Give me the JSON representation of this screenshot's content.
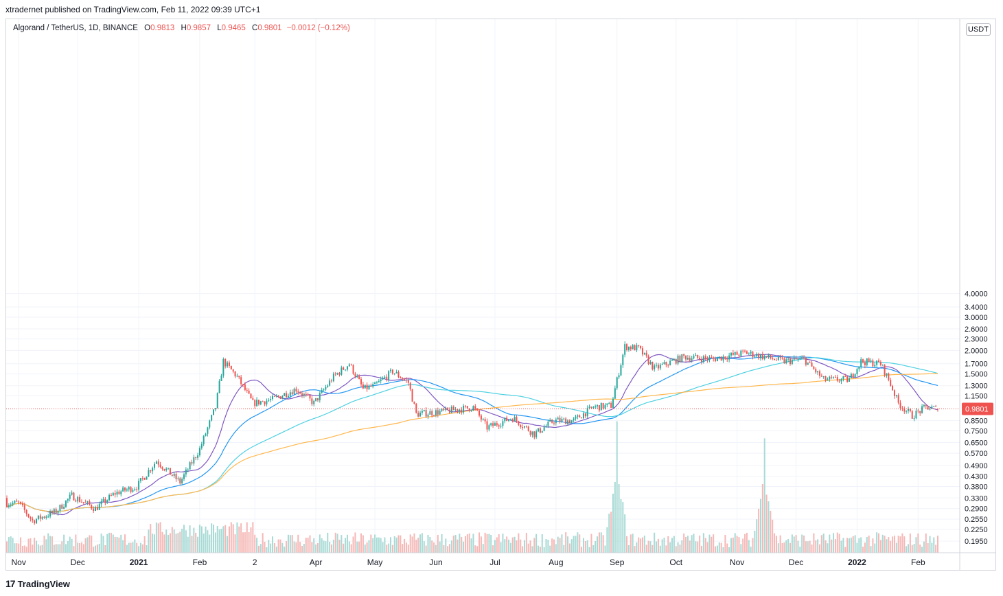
{
  "header": {
    "published_by": "xtradernet published on TradingView.com, Feb 11, 2022 09:39 UTC+1"
  },
  "legend": {
    "symbol": "Algorand / TetherUS, 1D, BINANCE",
    "o_label": "O",
    "o_value": "0.9813",
    "h_label": "H",
    "h_value": "0.9857",
    "l_label": "L",
    "l_value": "0.9465",
    "c_label": "C",
    "c_value": "0.9801",
    "change": "−0.0012 (−0.12%)"
  },
  "currency_button": "USDT",
  "footer": {
    "brand": "TradingView",
    "logo_glyph": "17"
  },
  "colors": {
    "up": "#26a69a",
    "down": "#ef5350",
    "ma_purple": "#7e57c2",
    "ma_blue": "#2196f3",
    "ma_cyan": "#4dd0e1",
    "ma_orange": "#ffb74d",
    "last_price_label": "#ef5350"
  },
  "chart_data": {
    "type": "candlestick",
    "title": "Algorand / TetherUS, 1D, BINANCE",
    "y_scale": "log",
    "y_axis_ticks": [
      "0.1950",
      "0.2250",
      "0.2550",
      "0.2900",
      "0.3300",
      "0.3800",
      "0.4300",
      "0.4900",
      "0.5700",
      "0.6500",
      "0.7500",
      "0.8500",
      "1.1500",
      "1.3000",
      "1.5000",
      "1.7000",
      "2.0000",
      "2.3000",
      "2.6000",
      "3.0000",
      "3.4000",
      "4.0000"
    ],
    "x_axis_ticks": [
      "Nov",
      "Dec",
      "2021",
      "Feb",
      "2",
      "Apr",
      "May",
      "Jun",
      "Jul",
      "Aug",
      "Sep",
      "Oct",
      "Nov",
      "Dec",
      "2022",
      "Feb"
    ],
    "last_price": "0.9801",
    "price_keypoints": [
      {
        "date": "2020-11-01",
        "close": 0.31
      },
      {
        "date": "2020-11-08",
        "close": 0.25
      },
      {
        "date": "2020-11-20",
        "close": 0.28
      },
      {
        "date": "2020-11-28",
        "close": 0.34
      },
      {
        "date": "2020-12-10",
        "close": 0.29
      },
      {
        "date": "2020-12-20",
        "close": 0.35
      },
      {
        "date": "2020-12-31",
        "close": 0.38
      },
      {
        "date": "2021-01-10",
        "close": 0.52
      },
      {
        "date": "2021-01-22",
        "close": 0.4
      },
      {
        "date": "2021-02-01",
        "close": 0.6
      },
      {
        "date": "2021-02-09",
        "close": 1.0
      },
      {
        "date": "2021-02-13",
        "close": 1.75
      },
      {
        "date": "2021-02-20",
        "close": 1.45
      },
      {
        "date": "2021-02-28",
        "close": 1.05
      },
      {
        "date": "2021-03-10",
        "close": 1.1
      },
      {
        "date": "2021-03-22",
        "close": 1.25
      },
      {
        "date": "2021-03-31",
        "close": 1.05
      },
      {
        "date": "2021-04-10",
        "close": 1.45
      },
      {
        "date": "2021-04-18",
        "close": 1.7
      },
      {
        "date": "2021-04-25",
        "close": 1.25
      },
      {
        "date": "2021-05-01",
        "close": 1.3
      },
      {
        "date": "2021-05-10",
        "close": 1.55
      },
      {
        "date": "2021-05-18",
        "close": 1.35
      },
      {
        "date": "2021-05-22",
        "close": 0.92
      },
      {
        "date": "2021-06-05",
        "close": 0.95
      },
      {
        "date": "2021-06-20",
        "close": 1.0
      },
      {
        "date": "2021-06-27",
        "close": 0.78
      },
      {
        "date": "2021-07-10",
        "close": 0.88
      },
      {
        "date": "2021-07-21",
        "close": 0.72
      },
      {
        "date": "2021-07-31",
        "close": 0.85
      },
      {
        "date": "2021-08-10",
        "close": 0.85
      },
      {
        "date": "2021-08-20",
        "close": 1.0
      },
      {
        "date": "2021-08-29",
        "close": 1.02
      },
      {
        "date": "2021-09-05",
        "close": 2.1
      },
      {
        "date": "2021-09-12",
        "close": 2.05
      },
      {
        "date": "2021-09-20",
        "close": 1.6
      },
      {
        "date": "2021-10-05",
        "close": 1.85
      },
      {
        "date": "2021-10-20",
        "close": 1.8
      },
      {
        "date": "2021-11-05",
        "close": 1.95
      },
      {
        "date": "2021-11-15",
        "close": 1.85
      },
      {
        "date": "2021-11-25",
        "close": 1.75
      },
      {
        "date": "2021-12-05",
        "close": 1.8
      },
      {
        "date": "2021-12-15",
        "close": 1.4
      },
      {
        "date": "2021-12-28",
        "close": 1.4
      },
      {
        "date": "2022-01-03",
        "close": 1.75
      },
      {
        "date": "2022-01-13",
        "close": 1.7
      },
      {
        "date": "2022-01-17",
        "close": 1.4
      },
      {
        "date": "2022-01-22",
        "close": 1.05
      },
      {
        "date": "2022-01-29",
        "close": 0.9
      },
      {
        "date": "2022-02-05",
        "close": 1.0
      },
      {
        "date": "2022-02-11",
        "close": 0.98
      }
    ],
    "volume_spike_dates": [
      "2021-09-01",
      "2021-11-15"
    ],
    "moving_averages": [
      {
        "color": "#7e57c2"
      },
      {
        "color": "#2196f3"
      },
      {
        "color": "#4dd0e1"
      },
      {
        "color": "#ffb74d"
      }
    ]
  }
}
